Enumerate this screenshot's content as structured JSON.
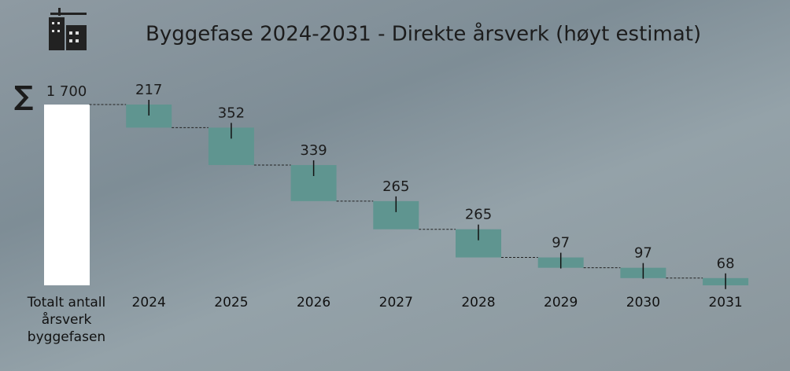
{
  "chart_data": {
    "type": "waterfall",
    "title": "Byggefase 2024-2031 - Direkte årsverk (høyt estimat)",
    "total": {
      "label": "Totalt antall årsverk byggefasen",
      "symbol": "∑",
      "value": 1700,
      "value_label": "1 700",
      "color": "#ffffff"
    },
    "categories": [
      "2024",
      "2025",
      "2026",
      "2027",
      "2028",
      "2029",
      "2030",
      "2031"
    ],
    "values": [
      217,
      352,
      339,
      265,
      265,
      97,
      97,
      68
    ],
    "color": "#5f9590"
  }
}
